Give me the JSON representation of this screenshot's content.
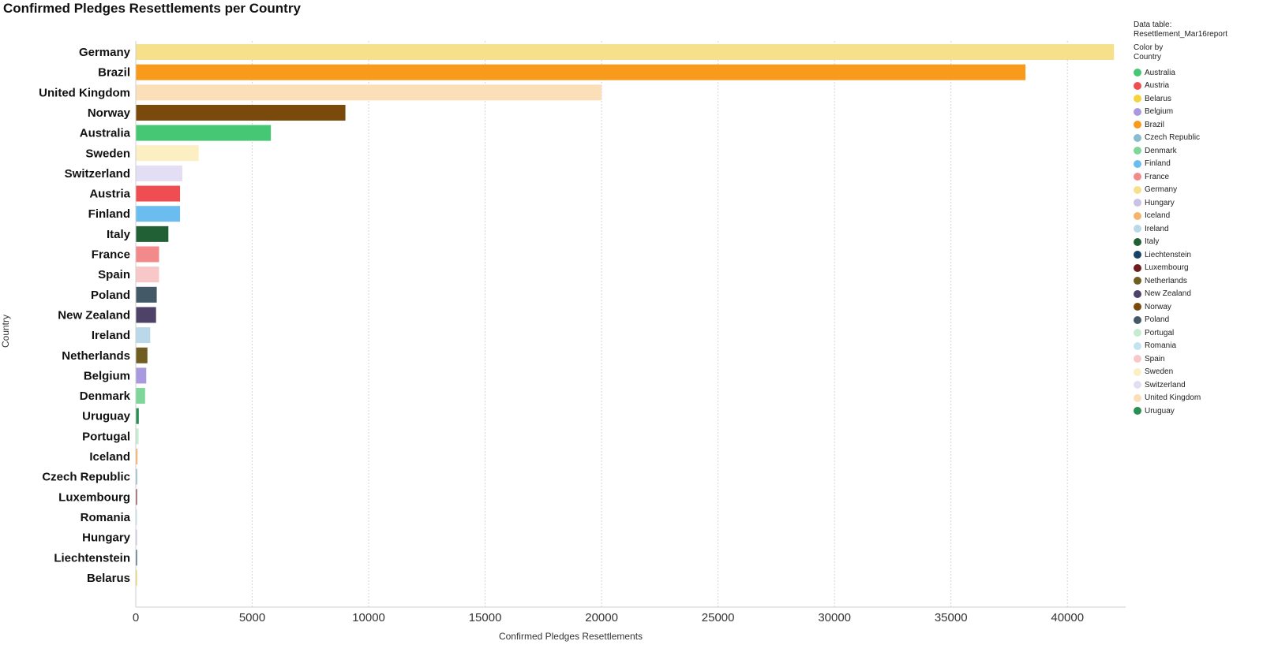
{
  "title": "Confirmed Pledges Resettlements per Country",
  "legend": {
    "data_table_label": "Data table:",
    "data_table_value": "Resettlement_Mar16report",
    "color_by_label": "Color by",
    "color_by_value": "Country",
    "items": [
      {
        "label": "Australia",
        "color": "#45c774"
      },
      {
        "label": "Austria",
        "color": "#ee4e52"
      },
      {
        "label": "Belarus",
        "color": "#f3d33e"
      },
      {
        "label": "Belgium",
        "color": "#a999df"
      },
      {
        "label": "Brazil",
        "color": "#f89a1c"
      },
      {
        "label": "Czech Republic",
        "color": "#8bbbd0"
      },
      {
        "label": "Denmark",
        "color": "#7ed69a"
      },
      {
        "label": "Finland",
        "color": "#6bbdf0"
      },
      {
        "label": "France",
        "color": "#f28a8c"
      },
      {
        "label": "Germany",
        "color": "#f7e08b"
      },
      {
        "label": "Hungary",
        "color": "#c9c2e8"
      },
      {
        "label": "Iceland",
        "color": "#f7b36a"
      },
      {
        "label": "Ireland",
        "color": "#b9d9e8"
      },
      {
        "label": "Italy",
        "color": "#215f35"
      },
      {
        "label": "Liechtenstein",
        "color": "#16436a"
      },
      {
        "label": "Luxembourg",
        "color": "#6e1e1e"
      },
      {
        "label": "Netherlands",
        "color": "#705d22"
      },
      {
        "label": "New Zealand",
        "color": "#4e4268"
      },
      {
        "label": "Norway",
        "color": "#7a4a0d"
      },
      {
        "label": "Poland",
        "color": "#435967"
      },
      {
        "label": "Portugal",
        "color": "#c5ecd2"
      },
      {
        "label": "Romania",
        "color": "#c3e3f0"
      },
      {
        "label": "Spain",
        "color": "#f8c8c9"
      },
      {
        "label": "Sweden",
        "color": "#fcefc4"
      },
      {
        "label": "Switzerland",
        "color": "#e3def3"
      },
      {
        "label": "United Kingdom",
        "color": "#fbdfb9"
      },
      {
        "label": "Uruguay",
        "color": "#2a8f52"
      }
    ]
  },
  "chart_data": {
    "type": "bar",
    "orientation": "horizontal",
    "title": "Confirmed Pledges Resettlements per Country",
    "xlabel": "Confirmed Pledges Resettlements",
    "ylabel": "Country",
    "xlim": [
      0,
      42500
    ],
    "xticks": [
      0,
      5000,
      10000,
      15000,
      20000,
      25000,
      30000,
      35000,
      40000
    ],
    "grid": "vertical dotted",
    "legend_position": "right",
    "categories": [
      "Germany",
      "Brazil",
      "United Kingdom",
      "Norway",
      "Australia",
      "Sweden",
      "Switzerland",
      "Austria",
      "Finland",
      "Italy",
      "France",
      "Spain",
      "Poland",
      "New Zealand",
      "Ireland",
      "Netherlands",
      "Belgium",
      "Denmark",
      "Uruguay",
      "Portugal",
      "Iceland",
      "Czech Republic",
      "Luxembourg",
      "Romania",
      "Hungary",
      "Liechtenstein",
      "Belarus"
    ],
    "values": [
      42000,
      38200,
      20000,
      9000,
      5800,
      2700,
      2000,
      1900,
      1900,
      1400,
      1000,
      1000,
      900,
      870,
      620,
      500,
      450,
      400,
      130,
      120,
      75,
      60,
      50,
      50,
      45,
      40,
      30
    ],
    "colors": [
      "#f7e08b",
      "#f89a1c",
      "#fbdfb9",
      "#7a4a0d",
      "#45c774",
      "#fcefc4",
      "#e3def3",
      "#ee4e52",
      "#6bbdf0",
      "#215f35",
      "#f28a8c",
      "#f8c8c9",
      "#435967",
      "#4e4268",
      "#b9d9e8",
      "#705d22",
      "#a999df",
      "#7ed69a",
      "#2a8f52",
      "#c5ecd2",
      "#f7b36a",
      "#8bbbd0",
      "#6e1e1e",
      "#c3e3f0",
      "#c9c2e8",
      "#16436a",
      "#f3d33e"
    ]
  }
}
